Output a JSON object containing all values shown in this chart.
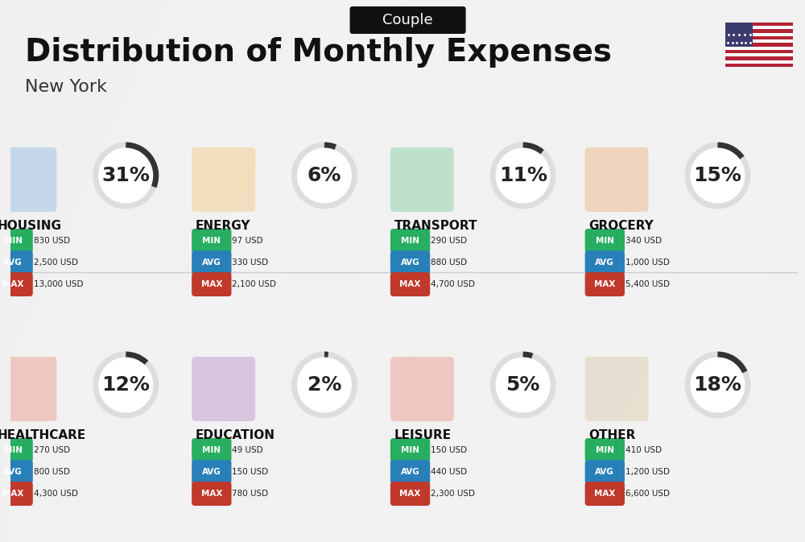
{
  "title": "Distribution of Monthly Expenses",
  "subtitle": "New York",
  "badge": "Couple",
  "background_color": "#f0f0f0",
  "categories": [
    {
      "name": "HOUSING",
      "percent": 31,
      "min": "830 USD",
      "avg": "2,500 USD",
      "max": "13,000 USD",
      "row": 0,
      "col": 0
    },
    {
      "name": "ENERGY",
      "percent": 6,
      "min": "97 USD",
      "avg": "330 USD",
      "max": "2,100 USD",
      "row": 0,
      "col": 1
    },
    {
      "name": "TRANSPORT",
      "percent": 11,
      "min": "290 USD",
      "avg": "880 USD",
      "max": "4,700 USD",
      "row": 0,
      "col": 2
    },
    {
      "name": "GROCERY",
      "percent": 15,
      "min": "340 USD",
      "avg": "1,000 USD",
      "max": "5,400 USD",
      "row": 0,
      "col": 3
    },
    {
      "name": "HEALTHCARE",
      "percent": 12,
      "min": "270 USD",
      "avg": "800 USD",
      "max": "4,300 USD",
      "row": 1,
      "col": 0
    },
    {
      "name": "EDUCATION",
      "percent": 2,
      "min": "49 USD",
      "avg": "150 USD",
      "max": "780 USD",
      "row": 1,
      "col": 1
    },
    {
      "name": "LEISURE",
      "percent": 5,
      "min": "150 USD",
      "avg": "440 USD",
      "max": "2,300 USD",
      "row": 1,
      "col": 2
    },
    {
      "name": "OTHER",
      "percent": 18,
      "min": "410 USD",
      "avg": "1,200 USD",
      "max": "6,600 USD",
      "row": 1,
      "col": 3
    }
  ],
  "min_color": "#2ecc71",
  "avg_color": "#3498db",
  "max_color": "#e74c3c",
  "label_colors": {
    "MIN": "#27ae60",
    "AVG": "#2980b9",
    "MAX": "#c0392b"
  },
  "arc_color": "#333333",
  "arc_bg_color": "#dddddd",
  "title_fontsize": 28,
  "subtitle_fontsize": 16,
  "badge_fontsize": 13,
  "category_fontsize": 11,
  "value_fontsize": 10,
  "percent_fontsize": 18
}
